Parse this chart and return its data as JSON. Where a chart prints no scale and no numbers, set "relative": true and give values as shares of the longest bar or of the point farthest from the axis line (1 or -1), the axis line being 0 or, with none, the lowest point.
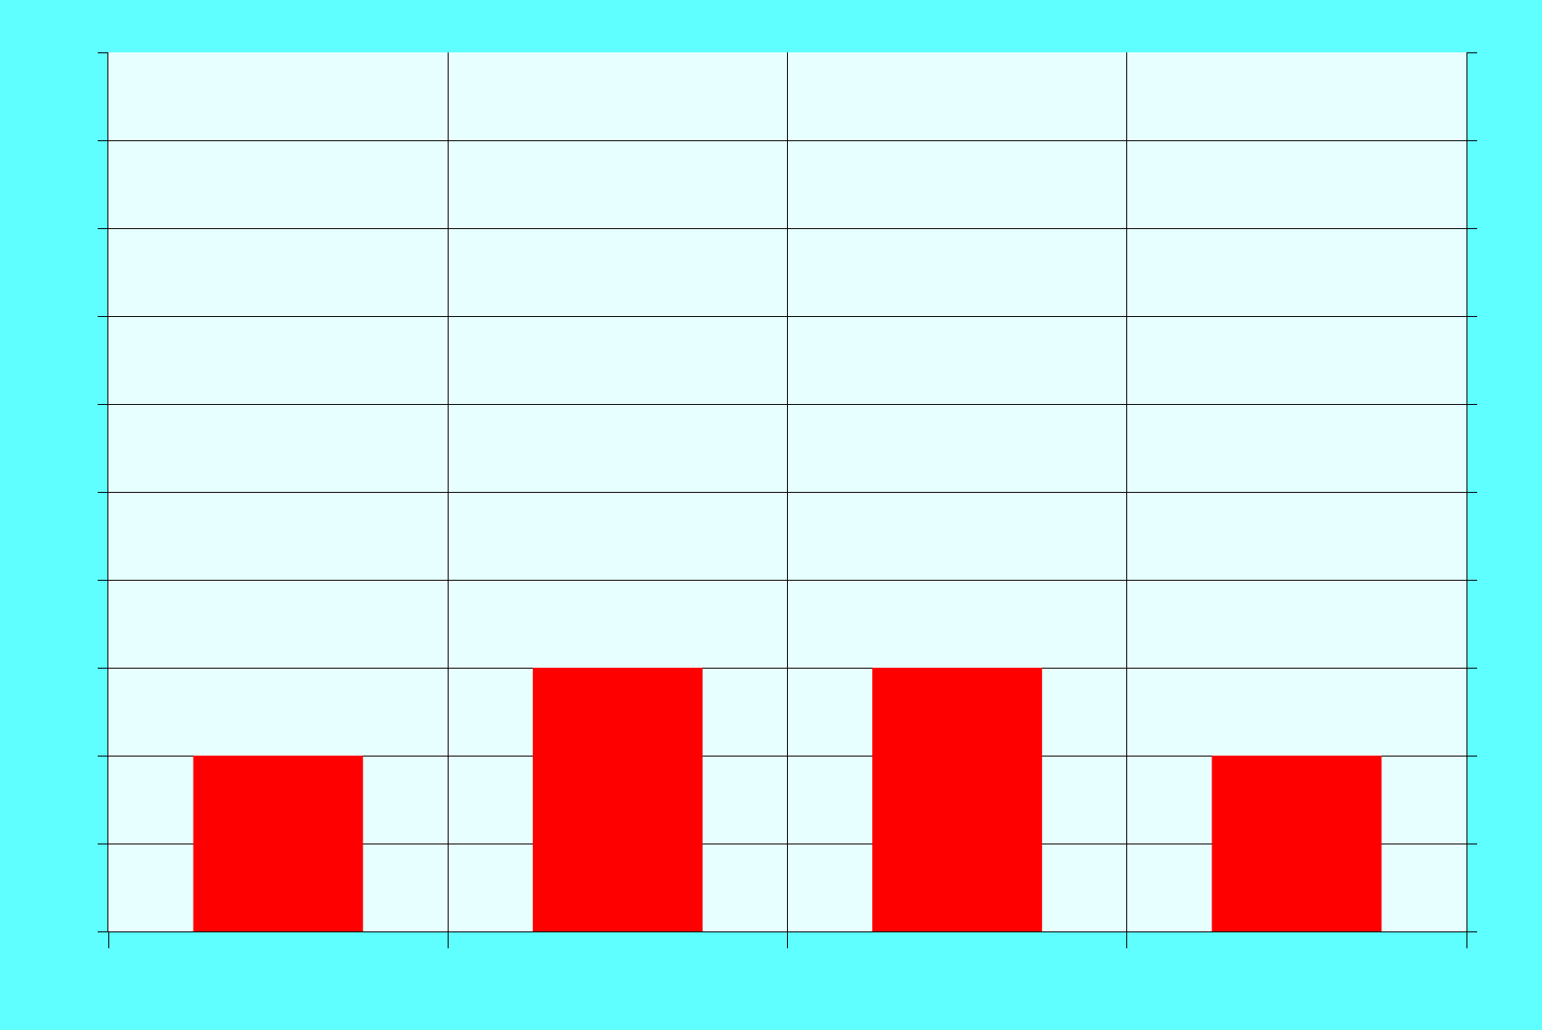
{
  "chart_data": {
    "type": "bar",
    "relative": true,
    "categories": [
      null,
      null,
      null,
      null
    ],
    "values": [
      0.667,
      1,
      1,
      0.667
    ],
    "color": "#ff0000",
    "grid": true
  }
}
